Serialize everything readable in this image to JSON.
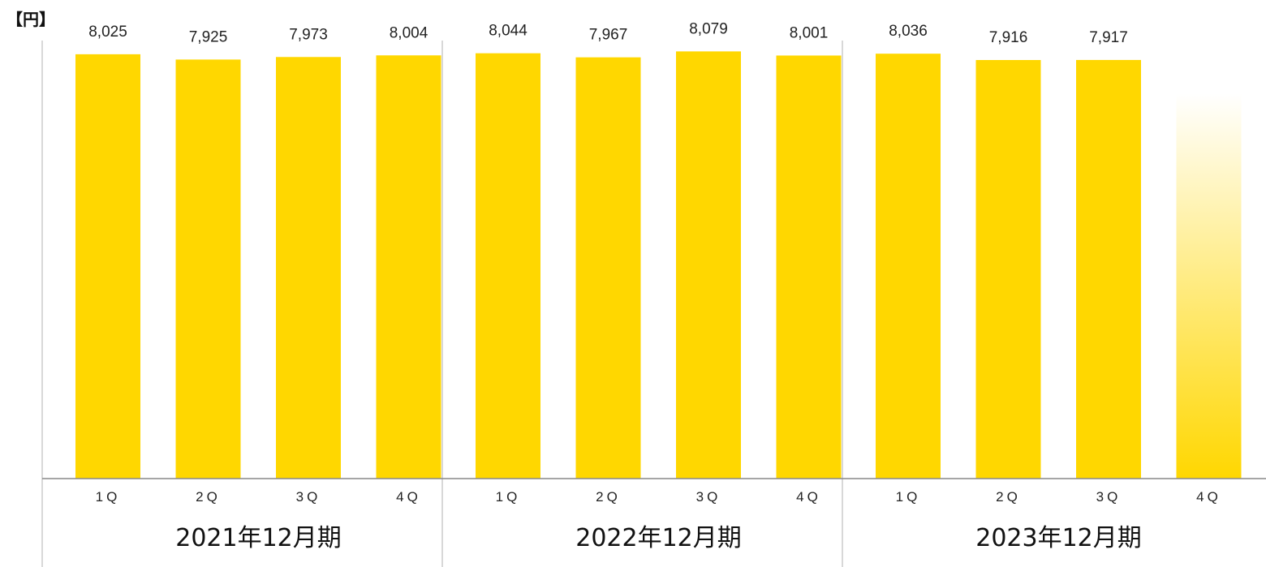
{
  "chart_data": {
    "type": "bar",
    "unit_label": "【円】",
    "groups": [
      {
        "label": "2021年12月期",
        "quarters": [
          {
            "label": "1Q",
            "value": 8025,
            "value_label": "8,025"
          },
          {
            "label": "2Q",
            "value": 7925,
            "value_label": "7,925"
          },
          {
            "label": "3Q",
            "value": 7973,
            "value_label": "7,973"
          },
          {
            "label": "4Q",
            "value": 8004,
            "value_label": "8,004"
          }
        ]
      },
      {
        "label": "2022年12月期",
        "quarters": [
          {
            "label": "1Q",
            "value": 8044,
            "value_label": "8,044"
          },
          {
            "label": "2Q",
            "value": 7967,
            "value_label": "7,967"
          },
          {
            "label": "3Q",
            "value": 8079,
            "value_label": "8,079"
          },
          {
            "label": "4Q",
            "value": 8001,
            "value_label": "8,001"
          }
        ]
      },
      {
        "label": "2023年12月期",
        "quarters": [
          {
            "label": "1Q",
            "value": 8036,
            "value_label": "8,036"
          },
          {
            "label": "2Q",
            "value": 7916,
            "value_label": "7,916"
          },
          {
            "label": "3Q",
            "value": 7917,
            "value_label": "7,917"
          },
          {
            "label": "4Q",
            "value": null,
            "value_label": "",
            "placeholder": true
          }
        ]
      }
    ],
    "ylim": [
      0,
      8100
    ],
    "grid": false,
    "legend": "none",
    "colors": {
      "bar": "#FFD700",
      "axis": "#888888",
      "divider": "#cccccc",
      "text": "#222222"
    }
  }
}
